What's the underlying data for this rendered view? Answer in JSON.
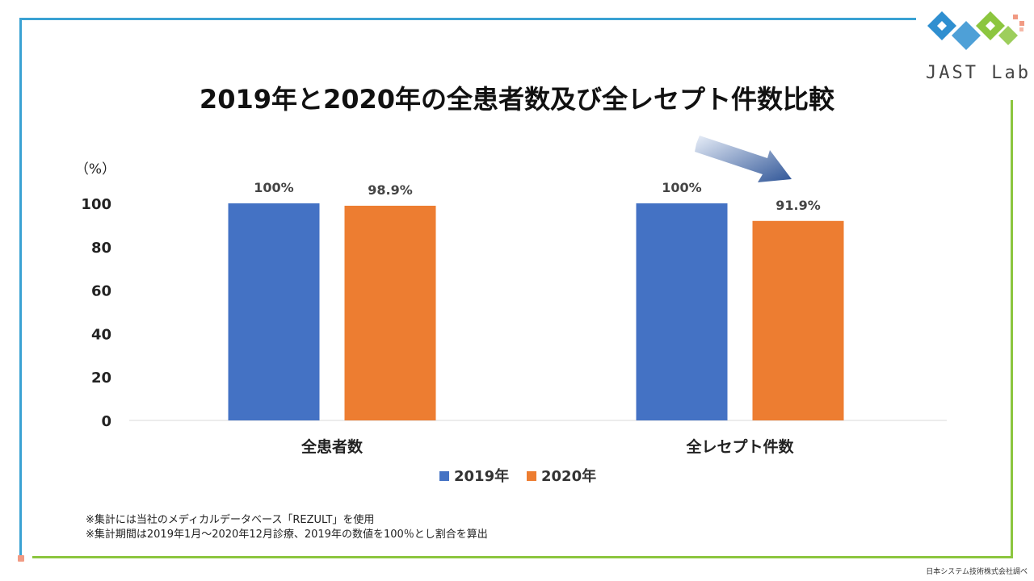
{
  "title": "2019年と2020年の全患者数及び全レセプト件数比較",
  "logo": {
    "text": "JAST Lab",
    "colors": {
      "blue": "#2f8fd0",
      "green": "#8cc63f",
      "pink": "#f19a83"
    }
  },
  "notes": [
    "※集計には当社のメディカルデータベース「REZULT」を使用",
    "※集計期間は2019年1月〜2020年12月診療、2019年の数値を100％とし割合を算出"
  ],
  "credit": "日本システム技術株式会社調べ",
  "chart_data": {
    "type": "bar",
    "title": "2019年と2020年の全患者数及び全レセプト件数比較",
    "ylabel": "（%）",
    "xlabel": "",
    "ylim": [
      0,
      100
    ],
    "yticks": [
      0,
      20,
      40,
      60,
      80,
      100
    ],
    "categories": [
      "全患者数",
      "全レセプト件数"
    ],
    "series": [
      {
        "name": "2019年",
        "color": "#4472c4",
        "values": [
          100,
          100
        ],
        "labels": [
          "100%",
          "100%"
        ]
      },
      {
        "name": "2020年",
        "color": "#ed7d31",
        "values": [
          98.9,
          91.9
        ],
        "labels": [
          "98.9%",
          "91.9%"
        ]
      }
    ],
    "legend": "bottom-center",
    "annotation": "arrow-down-right"
  }
}
